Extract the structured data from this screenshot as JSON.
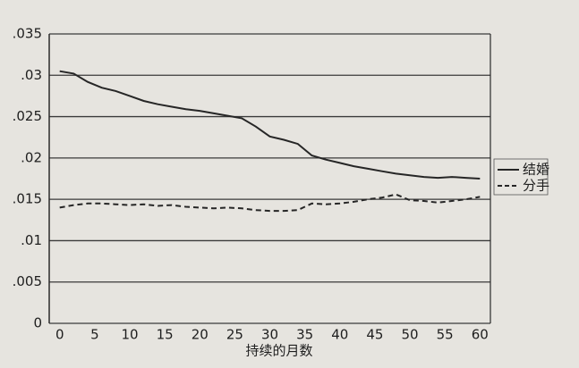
{
  "chart_data": {
    "type": "line",
    "x_label": "持续的月数",
    "x": [
      0,
      2,
      4,
      6,
      8,
      10,
      12,
      14,
      16,
      18,
      20,
      22,
      24,
      26,
      28,
      30,
      32,
      34,
      36,
      38,
      40,
      42,
      44,
      46,
      48,
      50,
      52,
      54,
      56,
      58,
      60
    ],
    "series": [
      {
        "name": "结婚",
        "color": "#262626",
        "dash": false,
        "values": [
          0.0305,
          0.0302,
          0.0292,
          0.0285,
          0.0281,
          0.0275,
          0.0269,
          0.0265,
          0.0262,
          0.0259,
          0.0257,
          0.0254,
          0.0251,
          0.0248,
          0.0238,
          0.0226,
          0.0222,
          0.0217,
          0.0203,
          0.0198,
          0.0194,
          0.019,
          0.0187,
          0.0184,
          0.0181,
          0.0179,
          0.0177,
          0.0176,
          0.0177,
          0.0176,
          0.0175
        ]
      },
      {
        "name": "分手",
        "color": "#262626",
        "dash": true,
        "values": [
          0.014,
          0.0143,
          0.0145,
          0.0145,
          0.0144,
          0.0143,
          0.0144,
          0.0142,
          0.0143,
          0.0141,
          0.014,
          0.0139,
          0.014,
          0.0139,
          0.0137,
          0.0136,
          0.0136,
          0.0137,
          0.0145,
          0.0144,
          0.0145,
          0.0147,
          0.015,
          0.0152,
          0.0156,
          0.0149,
          0.0148,
          0.0146,
          0.0148,
          0.015,
          0.0153
        ]
      }
    ],
    "xlim": [
      -1.5,
      61.5
    ],
    "xticks": [
      0,
      5,
      10,
      15,
      20,
      25,
      30,
      35,
      40,
      45,
      50,
      55,
      60
    ],
    "ylim": [
      0,
      0.035
    ],
    "yticks": [
      0,
      {
        "value": 0.005,
        "label": ".005"
      },
      {
        "value": 0.01,
        "label": ".01"
      },
      {
        "value": 0.015,
        "label": ".015"
      },
      {
        "value": 0.02,
        "label": ".02"
      },
      {
        "value": 0.025,
        "label": ".025"
      },
      {
        "value": 0.03,
        "label": ".03"
      },
      {
        "value": 0.035,
        "label": ".035"
      }
    ],
    "grid": true,
    "legend": "right"
  }
}
